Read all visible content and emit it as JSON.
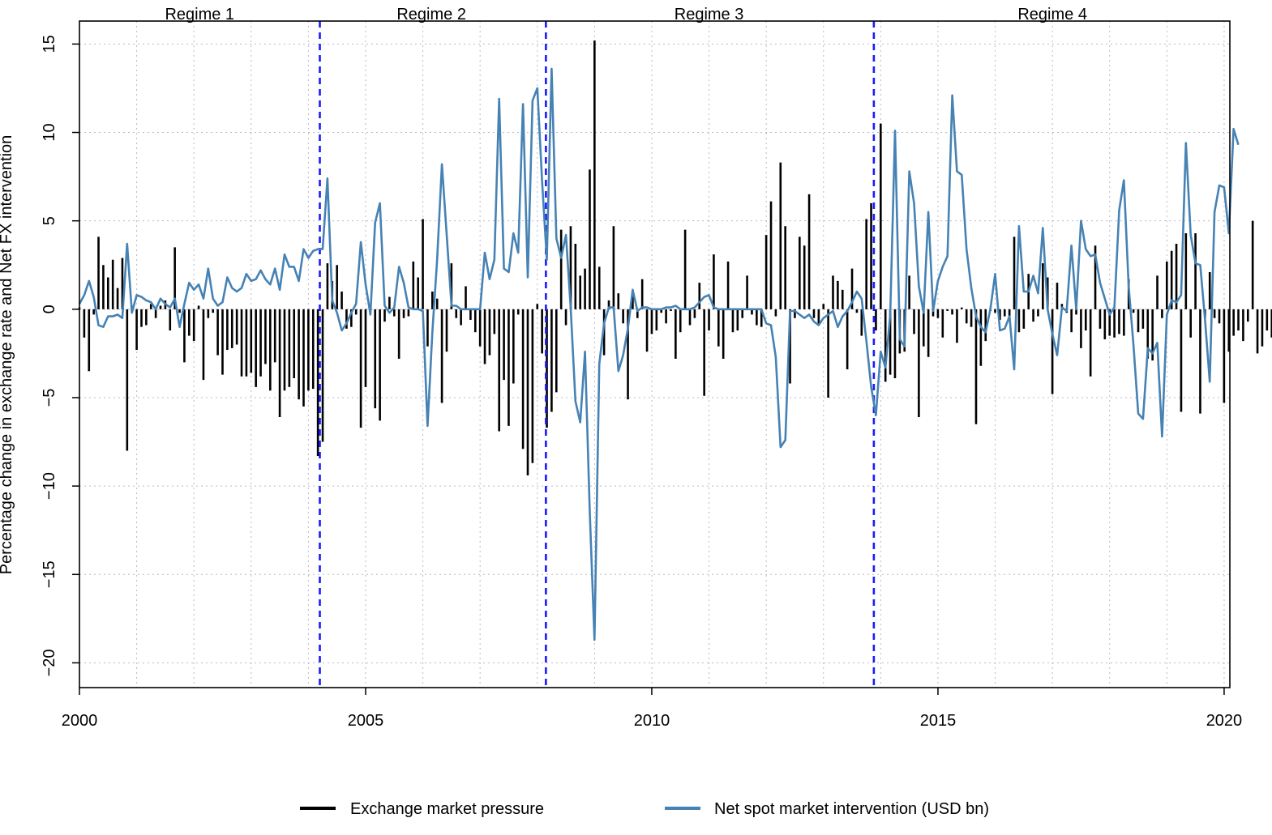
{
  "chart_data": {
    "type": "bar+line",
    "title": "",
    "xlabel": "",
    "ylabel": "Percentage change in exchange rate and Net FX intervention",
    "xlim": [
      2000,
      2020.1
    ],
    "ylim": [
      -21.4,
      16.3
    ],
    "x_ticks": [
      2000,
      2005,
      2010,
      2015,
      2020
    ],
    "y_ticks": [
      -20,
      -15,
      -10,
      -5,
      0,
      5,
      10,
      15
    ],
    "x_tick_labels": [
      "2000",
      "2005",
      "2010",
      "2015",
      "2020"
    ],
    "y_tick_labels": [
      "−20",
      "−15",
      "−10",
      "−5",
      "0",
      "5",
      "10",
      "15"
    ],
    "grid": "dotted",
    "regime_breaks": [
      2004.2,
      2008.15,
      2013.88
    ],
    "regime_break_color": "#1a1aff",
    "regimes": [
      {
        "label": "Regime 1",
        "center": 2002.1
      },
      {
        "label": "Regime 2",
        "center": 2006.15
      },
      {
        "label": "Regime 3",
        "center": 2011.0
      },
      {
        "label": "Regime 4",
        "center": 2017.0
      }
    ],
    "legend_position": "bottom",
    "series": [
      {
        "name": "Exchange market pressure",
        "kind": "bar",
        "color": "#000000",
        "start": 2000.0,
        "step": 0.08333,
        "values": [
          0.1,
          -1.6,
          -3.5,
          -0.3,
          4.1,
          2.5,
          1.8,
          2.8,
          1.2,
          2.9,
          -8.0,
          0.2,
          -2.3,
          -1.0,
          -0.9,
          0.3,
          -0.5,
          0.2,
          0.5,
          -1.2,
          3.5,
          -0.2,
          -3.0,
          -1.5,
          -1.8,
          0.2,
          -4.0,
          -0.5,
          -0.2,
          -2.6,
          -3.7,
          -2.3,
          -2.2,
          -2.0,
          -3.8,
          -3.8,
          -3.6,
          -4.4,
          -3.8,
          -3.1,
          -4.6,
          -3.0,
          -6.1,
          -4.6,
          -4.4,
          -3.9,
          -5.1,
          -5.5,
          -4.6,
          -4.5,
          -8.3,
          -7.5,
          2.6,
          1.6,
          2.5,
          1.0,
          -1.1,
          -1.0,
          -0.3,
          -6.7,
          -4.4,
          0.1,
          -5.6,
          -6.3,
          -0.7,
          0.7,
          -0.4,
          -2.8,
          -0.5,
          -0.4,
          2.7,
          1.8,
          5.1,
          -2.1,
          1.0,
          0.6,
          -5.3,
          -2.4,
          2.6,
          -0.5,
          -0.9,
          1.3,
          -0.6,
          -1.3,
          -2.1,
          -3.1,
          -2.6,
          -1.4,
          -6.9,
          -4.0,
          -6.6,
          -4.2,
          -0.3,
          -7.9,
          -9.4,
          -8.7,
          0.3,
          -2.5,
          -6.7,
          -5.8,
          -4.7,
          4.5,
          -0.9,
          4.7,
          3.7,
          1.9,
          2.3,
          7.9,
          15.2,
          2.4,
          -2.6,
          0.5,
          4.7,
          0.9,
          -0.8,
          -5.1,
          0.8,
          -0.5,
          1.7,
          -2.4,
          -1.4,
          -1.2,
          -0.2,
          -0.8,
          -0.1,
          -2.8,
          -1.3,
          4.5,
          -0.9,
          -0.5,
          1.5,
          -4.9,
          -1.2,
          3.1,
          -2.1,
          -2.8,
          2.7,
          -1.3,
          -1.2,
          -0.5,
          1.9,
          -0.3,
          -0.9,
          -1.0,
          4.2,
          6.1,
          -0.4,
          8.3,
          4.7,
          -4.2,
          -0.5,
          4.1,
          3.6,
          6.5,
          -0.5,
          -0.9,
          0.3,
          -5.0,
          1.9,
          1.6,
          1.1,
          -3.4,
          2.3,
          -0.2,
          -1.5,
          5.1,
          6.0,
          -1.2,
          10.5,
          -4.1,
          -3.7,
          -3.9,
          -2.5,
          -2.4,
          1.9,
          -1.4,
          -6.1,
          -2.1,
          -2.7,
          -0.4,
          -0.5,
          -1.6,
          -0.1,
          -0.3,
          -1.9,
          0.1,
          -0.8,
          -1.0,
          -6.5,
          -3.2,
          -1.8,
          -0.1,
          -0.2,
          -0.6,
          -0.4,
          -0.5,
          4.1,
          -1.3,
          -1.1,
          2.0,
          -0.7,
          -0.4,
          2.6,
          1.8,
          -4.8,
          1.5,
          0.3,
          -0.2,
          -1.3,
          -0.3,
          -2.2,
          -1.2,
          -3.8,
          3.6,
          -1.1,
          -1.7,
          -1.5,
          -1.6,
          -1.4,
          -1.5,
          1.7,
          -0.2,
          -1.3,
          -1.1,
          -2.8,
          -2.9,
          1.9,
          -0.5,
          2.7,
          3.3,
          3.7,
          -5.8,
          4.3,
          -1.6,
          4.3,
          -5.9,
          -0.5,
          2.1,
          -0.5,
          -0.8,
          -5.3,
          -2.4,
          -1.5,
          -1.2,
          -1.8,
          -0.7,
          5.0,
          -2.5,
          -2.1,
          -1.2,
          -1.6,
          -3.1
        ]
      },
      {
        "name": "Net spot market intervention (USD bn)",
        "kind": "line",
        "color": "#4682b4",
        "start": 2000.0,
        "step": 0.08333,
        "values": [
          0.3,
          0.8,
          1.6,
          0.7,
          -0.9,
          -1.0,
          -0.4,
          -0.4,
          -0.3,
          -0.5,
          3.7,
          -0.2,
          0.8,
          0.7,
          0.5,
          0.4,
          0.0,
          0.6,
          0.3,
          0.1,
          0.6,
          -1.0,
          0.3,
          1.5,
          1.1,
          1.4,
          0.6,
          2.3,
          0.6,
          0.2,
          0.4,
          1.8,
          1.2,
          1.0,
          1.2,
          2.0,
          1.6,
          1.7,
          2.2,
          1.7,
          1.4,
          2.3,
          1.1,
          3.1,
          2.4,
          2.4,
          1.6,
          3.4,
          2.9,
          3.3,
          3.4,
          3.4,
          7.4,
          0.5,
          -0.2,
          -1.2,
          -0.8,
          -0.2,
          0.3,
          3.8,
          1.4,
          -0.3,
          4.9,
          6.0,
          0.2,
          -0.2,
          0.1,
          2.4,
          1.5,
          0.1,
          0.0,
          0.0,
          -0.1,
          -6.6,
          -1.3,
          2.8,
          8.2,
          4.2,
          0.2,
          0.2,
          0.0,
          0.0,
          0.0,
          0.0,
          0.0,
          3.2,
          1.7,
          2.8,
          11.9,
          2.3,
          2.1,
          4.3,
          3.2,
          11.6,
          1.8,
          11.8,
          12.5,
          7.3,
          2.8,
          13.6,
          4.0,
          2.9,
          4.2,
          0.1,
          -5.2,
          -6.4,
          -2.4,
          -11.5,
          -18.7,
          -3.1,
          -0.8,
          0.1,
          0.1,
          -3.5,
          -2.6,
          -1.1,
          1.1,
          -0.1,
          0.1,
          0.1,
          0.0,
          0.0,
          0.0,
          0.1,
          0.1,
          0.2,
          0.0,
          0.0,
          0.0,
          0.1,
          0.4,
          0.7,
          0.8,
          0.1,
          0.0,
          0.0,
          0.0,
          0.0,
          0.0,
          0.0,
          0.0,
          0.0,
          0.0,
          0.0,
          -0.8,
          -0.9,
          -2.7,
          -7.8,
          -7.4,
          -0.1,
          -0.1,
          -0.3,
          -0.5,
          -0.3,
          -0.7,
          -0.9,
          -0.5,
          -0.3,
          -0.1,
          -1.0,
          -0.4,
          -0.1,
          0.4,
          1.0,
          0.6,
          -1.8,
          -4.4,
          -6.0,
          -2.4,
          -3.3,
          -0.3,
          10.1,
          -1.7,
          -2.1,
          7.8,
          6.0,
          1.3,
          -0.2,
          5.5,
          -0.1,
          1.6,
          2.4,
          3.0,
          12.1,
          7.8,
          7.6,
          3.4,
          1.2,
          -0.4,
          -1.0,
          -1.3,
          0.0,
          2.0,
          -1.2,
          -1.1,
          -0.4,
          -3.4,
          4.7,
          1.0,
          1.0,
          1.9,
          0.9,
          4.6,
          0.0,
          -1.4,
          -2.6,
          0.1,
          -0.1,
          3.6,
          0.0,
          5.0,
          3.4,
          3.0,
          3.1,
          1.5,
          0.6,
          -0.3,
          0.1,
          5.6,
          7.3,
          1.3,
          -2.0,
          -5.9,
          -6.2,
          -2.2,
          -2.5,
          -1.9,
          -7.2,
          -0.3,
          0.5,
          0.4,
          0.8,
          9.4,
          4.2,
          2.6,
          2.5,
          -0.6,
          -4.1,
          5.5,
          7.0,
          6.9,
          4.3,
          10.2,
          9.3
        ]
      }
    ]
  }
}
